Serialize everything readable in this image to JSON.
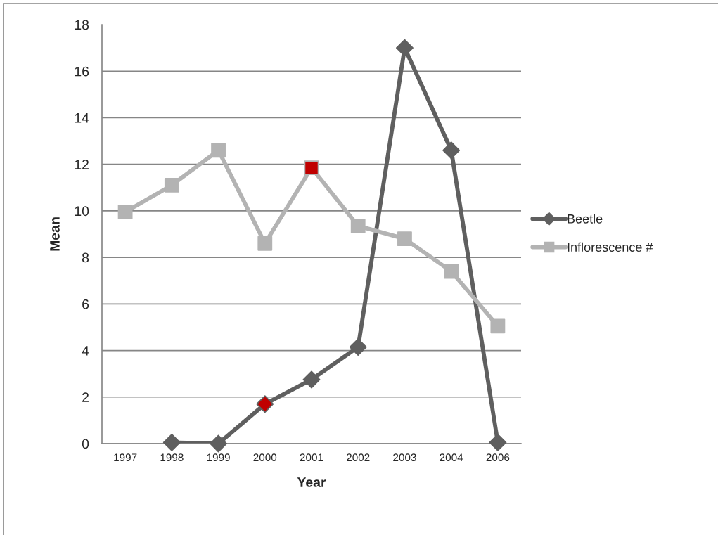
{
  "chart_data": {
    "type": "line",
    "xlabel": "Year",
    "ylabel": "Mean",
    "categories": [
      "1997",
      "1998",
      "1999",
      "2000",
      "2001",
      "2002",
      "2003",
      "2004",
      "2006"
    ],
    "series": [
      {
        "name": "Beetle",
        "color": "#5f5f5f",
        "marker": "diamond",
        "values": [
          null,
          0.05,
          0.0,
          1.7,
          2.75,
          4.15,
          17.0,
          12.6,
          0.05
        ],
        "colors": [
          "#5f5f5f",
          "#5f5f5f",
          "#5f5f5f",
          "#c00000",
          "#5f5f5f",
          "#5f5f5f",
          "#5f5f5f",
          "#5f5f5f",
          "#5f5f5f"
        ]
      },
      {
        "name": "Inflorescence #",
        "color": "#b3b3b3",
        "marker": "square",
        "values": [
          9.95,
          11.1,
          12.6,
          8.6,
          11.85,
          9.35,
          8.8,
          7.4,
          5.05
        ],
        "colors": [
          "#b3b3b3",
          "#b3b3b3",
          "#b3b3b3",
          "#b3b3b3",
          "#c00000",
          "#b3b3b3",
          "#b3b3b3",
          "#b3b3b3",
          "#b3b3b3"
        ]
      }
    ],
    "ylim": [
      0,
      18
    ],
    "yticks": [
      0,
      2,
      4,
      6,
      8,
      10,
      12,
      14,
      16,
      18
    ],
    "grid": "y",
    "legend": "right",
    "line_style": "solid"
  }
}
